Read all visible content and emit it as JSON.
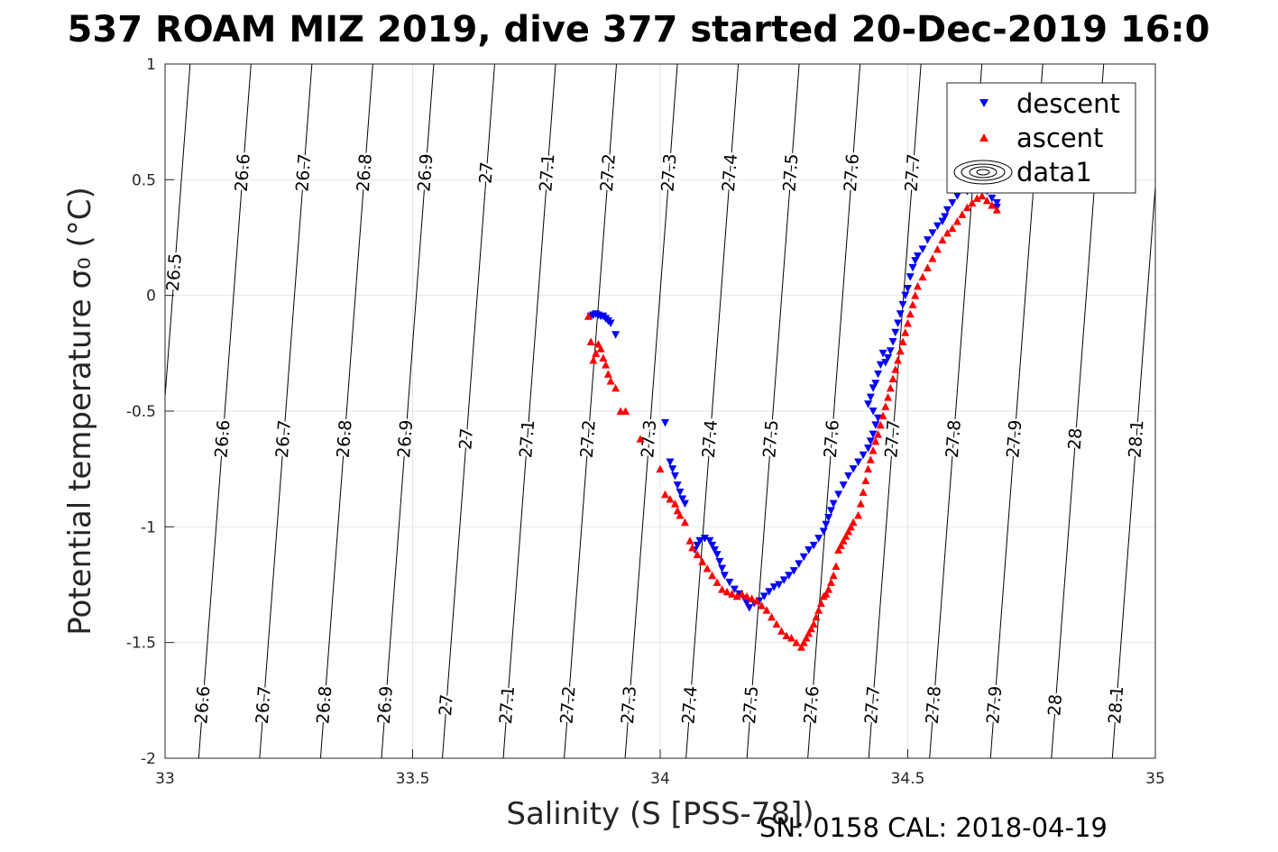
{
  "chart_data": {
    "type": "scatter",
    "title": "537 ROAM MIZ 2019, dive 377 started 20-Dec-2019 16:0",
    "xlabel": "Salinity (S [PSS-78])",
    "ylabel": "Potential temperature σ₀ (°C)",
    "xlim": [
      33,
      35
    ],
    "ylim": [
      -2,
      1
    ],
    "x_ticks": [
      "33",
      "33.5",
      "34",
      "34.5",
      "35"
    ],
    "y_ticks": [
      "-2",
      "-1.5",
      "-1",
      "-0.5",
      "0",
      "0.5",
      "1"
    ],
    "grid": true,
    "legend_position": "top-right",
    "legend": [
      "descent",
      "ascent",
      "data1"
    ],
    "footer": "SN: 0158  CAL: 2018-04-19",
    "colors": {
      "descent": "#0000ff",
      "ascent": "#ff0000",
      "contour": "#000000",
      "grid": "#e6e6e6"
    },
    "contours": {
      "slope": 0.0352,
      "levels": [
        {
          "label": "26.5",
          "s0": 33.0154
        },
        {
          "label": "26.6",
          "s0": 33.1384
        },
        {
          "label": "26.7",
          "s0": 33.2614
        },
        {
          "label": "26.8",
          "s0": 33.3844
        },
        {
          "label": "26.9",
          "s0": 33.5075
        },
        {
          "label": "27",
          "s0": 33.6305
        },
        {
          "label": "27.1",
          "s0": 33.7535
        },
        {
          "label": "27.2",
          "s0": 33.8765
        },
        {
          "label": "27.3",
          "s0": 33.9995
        },
        {
          "label": "27.4",
          "s0": 34.1225
        },
        {
          "label": "27.5",
          "s0": 34.2455
        },
        {
          "label": "27.6",
          "s0": 34.3685
        },
        {
          "label": "27.7",
          "s0": 34.4915
        },
        {
          "label": "27.8",
          "s0": 34.6145
        },
        {
          "label": "27.9",
          "s0": 34.7375
        },
        {
          "label": "28",
          "s0": 34.8605
        },
        {
          "label": "28.1",
          "s0": 34.9835
        }
      ],
      "label_rows": [
        {
          "t": 0.53,
          "levels": [
            "26.6",
            "26.7",
            "26.8",
            "26.9",
            "27",
            "27.1",
            "27.2",
            "27.3",
            "27.4",
            "27.5",
            "27.6",
            "27.7"
          ]
        },
        {
          "t": 0.1,
          "levels": [
            "26.5"
          ]
        },
        {
          "t": -0.62,
          "levels": [
            "26.6",
            "26.7",
            "26.8",
            "26.9",
            "27",
            "27.1",
            "27.2",
            "27.3",
            "27.4",
            "27.5",
            "27.6",
            "27.7",
            "27.8",
            "27.9",
            "28",
            "28.1"
          ]
        },
        {
          "t": -1.77,
          "levels": [
            "26.6",
            "26.7",
            "26.8",
            "26.9",
            "27",
            "27.1",
            "27.2",
            "27.3",
            "27.4",
            "27.5",
            "27.6",
            "27.7",
            "27.8",
            "27.9",
            "28",
            "28.1"
          ]
        }
      ]
    },
    "series": [
      {
        "name": "descent",
        "points": [
          [
            34.68,
            0.4
          ],
          [
            34.68,
            0.38
          ],
          [
            34.67,
            0.42
          ],
          [
            34.66,
            0.45
          ],
          [
            34.64,
            0.46
          ],
          [
            34.62,
            0.45
          ],
          [
            34.6,
            0.43
          ],
          [
            34.59,
            0.4
          ],
          [
            34.58,
            0.37
          ],
          [
            34.575,
            0.34
          ],
          [
            34.57,
            0.32
          ],
          [
            34.56,
            0.3
          ],
          [
            34.55,
            0.27
          ],
          [
            34.54,
            0.24
          ],
          [
            34.53,
            0.2
          ],
          [
            34.52,
            0.17
          ],
          [
            34.515,
            0.15
          ],
          [
            34.51,
            0.12
          ],
          [
            34.505,
            0.08
          ],
          [
            34.5,
            0.03
          ],
          [
            34.495,
            0.0
          ],
          [
            34.49,
            -0.04
          ],
          [
            34.485,
            -0.08
          ],
          [
            34.48,
            -0.12
          ],
          [
            34.475,
            -0.16
          ],
          [
            34.47,
            -0.2
          ],
          [
            34.465,
            -0.24
          ],
          [
            34.46,
            -0.27
          ],
          [
            34.455,
            -0.29
          ],
          [
            34.45,
            -0.25
          ],
          [
            34.445,
            -0.3
          ],
          [
            34.44,
            -0.34
          ],
          [
            34.435,
            -0.38
          ],
          [
            34.43,
            -0.4
          ],
          [
            34.425,
            -0.44
          ],
          [
            34.42,
            -0.47
          ],
          [
            34.43,
            -0.5
          ],
          [
            34.44,
            -0.53
          ],
          [
            34.435,
            -0.56
          ],
          [
            34.43,
            -0.6
          ],
          [
            34.425,
            -0.63
          ],
          [
            34.42,
            -0.66
          ],
          [
            34.41,
            -0.69
          ],
          [
            34.4,
            -0.72
          ],
          [
            34.39,
            -0.75
          ],
          [
            34.38,
            -0.78
          ],
          [
            34.37,
            -0.82
          ],
          [
            34.36,
            -0.86
          ],
          [
            34.35,
            -0.9
          ],
          [
            34.345,
            -0.93
          ],
          [
            34.34,
            -0.96
          ],
          [
            34.335,
            -0.99
          ],
          [
            34.33,
            -1.02
          ],
          [
            34.32,
            -1.05
          ],
          [
            34.31,
            -1.08
          ],
          [
            34.3,
            -1.1
          ],
          [
            34.29,
            -1.13
          ],
          [
            34.28,
            -1.16
          ],
          [
            34.27,
            -1.19
          ],
          [
            34.26,
            -1.21
          ],
          [
            34.25,
            -1.23
          ],
          [
            34.24,
            -1.25
          ],
          [
            34.23,
            -1.26
          ],
          [
            34.22,
            -1.28
          ],
          [
            34.21,
            -1.3
          ],
          [
            34.2,
            -1.32
          ],
          [
            34.19,
            -1.33
          ],
          [
            34.18,
            -1.35
          ],
          [
            34.175,
            -1.33
          ],
          [
            34.17,
            -1.31
          ],
          [
            34.16,
            -1.29
          ],
          [
            34.15,
            -1.27
          ],
          [
            34.14,
            -1.24
          ],
          [
            34.13,
            -1.21
          ],
          [
            34.125,
            -1.18
          ],
          [
            34.12,
            -1.15
          ],
          [
            34.115,
            -1.12
          ],
          [
            34.11,
            -1.1
          ],
          [
            34.105,
            -1.08
          ],
          [
            34.1,
            -1.06
          ],
          [
            34.09,
            -1.05
          ],
          [
            34.08,
            -1.06
          ],
          [
            34.075,
            -1.08
          ],
          [
            34.07,
            -1.1
          ],
          [
            34.05,
            -0.9
          ],
          [
            34.045,
            -0.88
          ],
          [
            34.04,
            -0.85
          ],
          [
            34.035,
            -0.82
          ],
          [
            34.03,
            -0.78
          ],
          [
            34.025,
            -0.75
          ],
          [
            34.02,
            -0.72
          ],
          [
            34.01,
            -0.55
          ],
          [
            33.91,
            -0.17
          ],
          [
            33.9,
            -0.12
          ],
          [
            33.895,
            -0.11
          ],
          [
            33.89,
            -0.1
          ],
          [
            33.885,
            -0.09
          ],
          [
            33.88,
            -0.09
          ],
          [
            33.875,
            -0.085
          ],
          [
            33.87,
            -0.08
          ],
          [
            33.865,
            -0.085
          ],
          [
            33.86,
            -0.09
          ]
        ]
      },
      {
        "name": "ascent",
        "points": [
          [
            34.68,
            0.37
          ],
          [
            34.67,
            0.39
          ],
          [
            34.66,
            0.41
          ],
          [
            34.65,
            0.43
          ],
          [
            34.64,
            0.42
          ],
          [
            34.63,
            0.4
          ],
          [
            34.62,
            0.38
          ],
          [
            34.61,
            0.35
          ],
          [
            34.6,
            0.32
          ],
          [
            34.59,
            0.29
          ],
          [
            34.58,
            0.27
          ],
          [
            34.57,
            0.24
          ],
          [
            34.56,
            0.2
          ],
          [
            34.55,
            0.16
          ],
          [
            34.54,
            0.12
          ],
          [
            34.53,
            0.08
          ],
          [
            34.52,
            0.04
          ],
          [
            34.515,
            0.0
          ],
          [
            34.51,
            -0.04
          ],
          [
            34.505,
            -0.08
          ],
          [
            34.5,
            -0.12
          ],
          [
            34.495,
            -0.16
          ],
          [
            34.49,
            -0.2
          ],
          [
            34.485,
            -0.24
          ],
          [
            34.48,
            -0.28
          ],
          [
            34.475,
            -0.32
          ],
          [
            34.47,
            -0.36
          ],
          [
            34.465,
            -0.4
          ],
          [
            34.46,
            -0.44
          ],
          [
            34.455,
            -0.48
          ],
          [
            34.45,
            -0.52
          ],
          [
            34.445,
            -0.56
          ],
          [
            34.44,
            -0.6
          ],
          [
            34.435,
            -0.63
          ],
          [
            34.43,
            -0.67
          ],
          [
            34.425,
            -0.71
          ],
          [
            34.42,
            -0.75
          ],
          [
            34.415,
            -0.8
          ],
          [
            34.41,
            -0.85
          ],
          [
            34.405,
            -0.9
          ],
          [
            34.4,
            -0.95
          ],
          [
            34.39,
            -0.98
          ],
          [
            34.385,
            -1.0
          ],
          [
            34.38,
            -1.02
          ],
          [
            34.375,
            -1.04
          ],
          [
            34.37,
            -1.06
          ],
          [
            34.365,
            -1.08
          ],
          [
            34.36,
            -1.1
          ],
          [
            34.355,
            -1.17
          ],
          [
            34.35,
            -1.21
          ],
          [
            34.345,
            -1.24
          ],
          [
            34.34,
            -1.27
          ],
          [
            34.335,
            -1.29
          ],
          [
            34.33,
            -1.3
          ],
          [
            34.325,
            -1.33
          ],
          [
            34.32,
            -1.36
          ],
          [
            34.315,
            -1.39
          ],
          [
            34.31,
            -1.42
          ],
          [
            34.305,
            -1.44
          ],
          [
            34.3,
            -1.46
          ],
          [
            34.295,
            -1.48
          ],
          [
            34.29,
            -1.5
          ],
          [
            34.285,
            -1.52
          ],
          [
            34.275,
            -1.5
          ],
          [
            34.265,
            -1.48
          ],
          [
            34.255,
            -1.47
          ],
          [
            34.245,
            -1.45
          ],
          [
            34.235,
            -1.42
          ],
          [
            34.225,
            -1.39
          ],
          [
            34.215,
            -1.36
          ],
          [
            34.205,
            -1.34
          ],
          [
            34.195,
            -1.32
          ],
          [
            34.185,
            -1.31
          ],
          [
            34.175,
            -1.3
          ],
          [
            34.165,
            -1.29
          ],
          [
            34.155,
            -1.3
          ],
          [
            34.145,
            -1.29
          ],
          [
            34.135,
            -1.28
          ],
          [
            34.125,
            -1.27
          ],
          [
            34.115,
            -1.24
          ],
          [
            34.105,
            -1.21
          ],
          [
            34.095,
            -1.18
          ],
          [
            34.085,
            -1.15
          ],
          [
            34.075,
            -1.12
          ],
          [
            34.065,
            -1.09
          ],
          [
            34.06,
            -1.06
          ],
          [
            34.05,
            -0.98
          ],
          [
            34.04,
            -0.95
          ],
          [
            34.035,
            -0.93
          ],
          [
            34.03,
            -0.9
          ],
          [
            34.02,
            -0.88
          ],
          [
            34.01,
            -0.86
          ],
          [
            34.0,
            -0.75
          ],
          [
            33.96,
            -0.62
          ],
          [
            33.93,
            -0.5
          ],
          [
            33.92,
            -0.5
          ],
          [
            33.91,
            -0.4
          ],
          [
            33.9,
            -0.37
          ],
          [
            33.895,
            -0.34
          ],
          [
            33.89,
            -0.3
          ],
          [
            33.885,
            -0.27
          ],
          [
            33.88,
            -0.23
          ],
          [
            33.875,
            -0.21
          ],
          [
            33.87,
            -0.25
          ],
          [
            33.865,
            -0.28
          ],
          [
            33.86,
            -0.2
          ],
          [
            33.855,
            -0.09
          ]
        ]
      }
    ]
  }
}
